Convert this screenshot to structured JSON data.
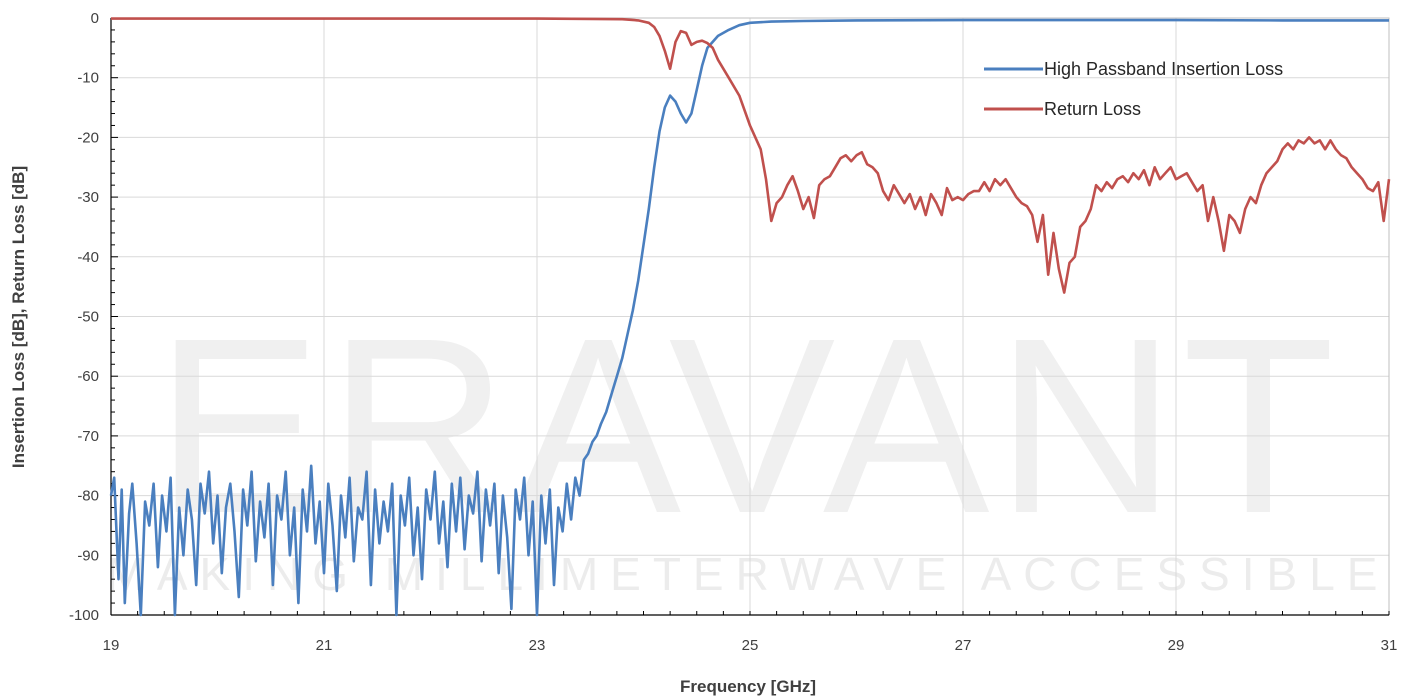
{
  "watermark": {
    "brand": "ERAVANT",
    "tagline": "MAKING MILLIMETERWAVE ACCESSIBLE"
  },
  "chart_data": {
    "type": "line",
    "title": "",
    "xlabel": "Frequency [GHz]",
    "ylabel": "Insertion Loss [dB], Return Loss [dB]",
    "xlim": [
      19,
      31
    ],
    "ylim": [
      -100,
      0
    ],
    "x_ticks": [
      19,
      21,
      23,
      25,
      27,
      29,
      31
    ],
    "y_ticks": [
      0,
      -10,
      -20,
      -30,
      -40,
      -50,
      -60,
      -70,
      -80,
      -90,
      -100
    ],
    "grid": true,
    "legend_position": "top-right",
    "series": [
      {
        "name": "High Passband Insertion Loss",
        "color": "#4a7fbf",
        "points": [
          [
            19.0,
            -80
          ],
          [
            19.03,
            -77
          ],
          [
            19.07,
            -94
          ],
          [
            19.1,
            -79
          ],
          [
            19.13,
            -98
          ],
          [
            19.17,
            -83
          ],
          [
            19.2,
            -78
          ],
          [
            19.24,
            -88
          ],
          [
            19.28,
            -100
          ],
          [
            19.32,
            -81
          ],
          [
            19.36,
            -85
          ],
          [
            19.4,
            -78
          ],
          [
            19.44,
            -92
          ],
          [
            19.48,
            -80
          ],
          [
            19.52,
            -86
          ],
          [
            19.56,
            -77
          ],
          [
            19.6,
            -100
          ],
          [
            19.64,
            -82
          ],
          [
            19.68,
            -90
          ],
          [
            19.72,
            -79
          ],
          [
            19.76,
            -84
          ],
          [
            19.8,
            -95
          ],
          [
            19.84,
            -78
          ],
          [
            19.88,
            -83
          ],
          [
            19.92,
            -76
          ],
          [
            19.96,
            -88
          ],
          [
            20.0,
            -80
          ],
          [
            20.04,
            -93
          ],
          [
            20.08,
            -82
          ],
          [
            20.12,
            -78
          ],
          [
            20.16,
            -86
          ],
          [
            20.2,
            -97
          ],
          [
            20.24,
            -79
          ],
          [
            20.28,
            -85
          ],
          [
            20.32,
            -76
          ],
          [
            20.36,
            -91
          ],
          [
            20.4,
            -81
          ],
          [
            20.44,
            -87
          ],
          [
            20.48,
            -78
          ],
          [
            20.52,
            -95
          ],
          [
            20.56,
            -80
          ],
          [
            20.6,
            -84
          ],
          [
            20.64,
            -76
          ],
          [
            20.68,
            -90
          ],
          [
            20.72,
            -82
          ],
          [
            20.76,
            -98
          ],
          [
            20.8,
            -79
          ],
          [
            20.84,
            -86
          ],
          [
            20.88,
            -75
          ],
          [
            20.92,
            -88
          ],
          [
            20.96,
            -81
          ],
          [
            21.0,
            -93
          ],
          [
            21.04,
            -78
          ],
          [
            21.08,
            -85
          ],
          [
            21.12,
            -96
          ],
          [
            21.16,
            -80
          ],
          [
            21.2,
            -87
          ],
          [
            21.24,
            -77
          ],
          [
            21.28,
            -91
          ],
          [
            21.32,
            -82
          ],
          [
            21.36,
            -84
          ],
          [
            21.4,
            -76
          ],
          [
            21.44,
            -95
          ],
          [
            21.48,
            -79
          ],
          [
            21.52,
            -88
          ],
          [
            21.56,
            -81
          ],
          [
            21.6,
            -86
          ],
          [
            21.64,
            -78
          ],
          [
            21.68,
            -100
          ],
          [
            21.72,
            -80
          ],
          [
            21.76,
            -85
          ],
          [
            21.8,
            -77
          ],
          [
            21.84,
            -90
          ],
          [
            21.88,
            -82
          ],
          [
            21.92,
            -94
          ],
          [
            21.96,
            -79
          ],
          [
            22.0,
            -84
          ],
          [
            22.04,
            -76
          ],
          [
            22.08,
            -88
          ],
          [
            22.12,
            -81
          ],
          [
            22.16,
            -92
          ],
          [
            22.2,
            -78
          ],
          [
            22.24,
            -86
          ],
          [
            22.28,
            -77
          ],
          [
            22.32,
            -89
          ],
          [
            22.36,
            -80
          ],
          [
            22.4,
            -83
          ],
          [
            22.44,
            -76
          ],
          [
            22.48,
            -91
          ],
          [
            22.52,
            -79
          ],
          [
            22.56,
            -85
          ],
          [
            22.6,
            -78
          ],
          [
            22.64,
            -93
          ],
          [
            22.68,
            -80
          ],
          [
            22.72,
            -87
          ],
          [
            22.76,
            -99
          ],
          [
            22.8,
            -79
          ],
          [
            22.84,
            -84
          ],
          [
            22.88,
            -77
          ],
          [
            22.92,
            -90
          ],
          [
            22.96,
            -81
          ],
          [
            23.0,
            -100
          ],
          [
            23.04,
            -80
          ],
          [
            23.08,
            -88
          ],
          [
            23.12,
            -79
          ],
          [
            23.16,
            -95
          ],
          [
            23.2,
            -82
          ],
          [
            23.24,
            -86
          ],
          [
            23.28,
            -78
          ],
          [
            23.32,
            -84
          ],
          [
            23.36,
            -77
          ],
          [
            23.4,
            -80
          ],
          [
            23.44,
            -74
          ],
          [
            23.48,
            -73
          ],
          [
            23.52,
            -71
          ],
          [
            23.56,
            -70
          ],
          [
            23.6,
            -68
          ],
          [
            23.65,
            -66
          ],
          [
            23.7,
            -63
          ],
          [
            23.75,
            -60
          ],
          [
            23.8,
            -57
          ],
          [
            23.85,
            -53
          ],
          [
            23.9,
            -49
          ],
          [
            23.95,
            -44
          ],
          [
            24.0,
            -38
          ],
          [
            24.05,
            -32
          ],
          [
            24.1,
            -25
          ],
          [
            24.15,
            -19
          ],
          [
            24.2,
            -15
          ],
          [
            24.25,
            -13
          ],
          [
            24.3,
            -14
          ],
          [
            24.35,
            -16
          ],
          [
            24.4,
            -17.5
          ],
          [
            24.45,
            -16
          ],
          [
            24.5,
            -12
          ],
          [
            24.55,
            -8
          ],
          [
            24.6,
            -5
          ],
          [
            24.7,
            -3
          ],
          [
            24.8,
            -2
          ],
          [
            24.9,
            -1.2
          ],
          [
            25.0,
            -0.8
          ],
          [
            25.2,
            -0.6
          ],
          [
            25.5,
            -0.5
          ],
          [
            26.0,
            -0.4
          ],
          [
            27.0,
            -0.35
          ],
          [
            28.0,
            -0.35
          ],
          [
            29.0,
            -0.35
          ],
          [
            30.0,
            -0.4
          ],
          [
            31.0,
            -0.4
          ]
        ]
      },
      {
        "name": "Return Loss",
        "color": "#c0504d",
        "points": [
          [
            19.0,
            -0.1
          ],
          [
            20.0,
            -0.1
          ],
          [
            21.0,
            -0.1
          ],
          [
            22.0,
            -0.1
          ],
          [
            23.0,
            -0.1
          ],
          [
            23.5,
            -0.15
          ],
          [
            23.8,
            -0.2
          ],
          [
            23.95,
            -0.4
          ],
          [
            24.05,
            -0.8
          ],
          [
            24.1,
            -1.5
          ],
          [
            24.15,
            -3
          ],
          [
            24.2,
            -5.5
          ],
          [
            24.25,
            -8.5
          ],
          [
            24.3,
            -4
          ],
          [
            24.35,
            -2.2
          ],
          [
            24.4,
            -2.5
          ],
          [
            24.45,
            -4.5
          ],
          [
            24.5,
            -4
          ],
          [
            24.55,
            -3.8
          ],
          [
            24.6,
            -4.2
          ],
          [
            24.65,
            -5
          ],
          [
            24.7,
            -7
          ],
          [
            24.8,
            -10
          ],
          [
            24.9,
            -13
          ],
          [
            25.0,
            -18
          ],
          [
            25.1,
            -22
          ],
          [
            25.15,
            -27
          ],
          [
            25.2,
            -34
          ],
          [
            25.25,
            -31
          ],
          [
            25.3,
            -30
          ],
          [
            25.35,
            -28
          ],
          [
            25.4,
            -26.5
          ],
          [
            25.45,
            -29
          ],
          [
            25.5,
            -32
          ],
          [
            25.55,
            -30
          ],
          [
            25.6,
            -33.5
          ],
          [
            25.65,
            -28
          ],
          [
            25.7,
            -27
          ],
          [
            25.75,
            -26.5
          ],
          [
            25.8,
            -25
          ],
          [
            25.85,
            -23.5
          ],
          [
            25.9,
            -23
          ],
          [
            25.95,
            -24
          ],
          [
            26.0,
            -23
          ],
          [
            26.05,
            -22.5
          ],
          [
            26.1,
            -24.5
          ],
          [
            26.15,
            -25
          ],
          [
            26.2,
            -26
          ],
          [
            26.25,
            -29
          ],
          [
            26.3,
            -30.5
          ],
          [
            26.35,
            -28
          ],
          [
            26.4,
            -29.5
          ],
          [
            26.45,
            -31
          ],
          [
            26.5,
            -29.5
          ],
          [
            26.55,
            -32
          ],
          [
            26.6,
            -30
          ],
          [
            26.65,
            -33
          ],
          [
            26.7,
            -29.5
          ],
          [
            26.75,
            -31
          ],
          [
            26.8,
            -33
          ],
          [
            26.85,
            -28.5
          ],
          [
            26.9,
            -30.5
          ],
          [
            26.95,
            -30
          ],
          [
            27.0,
            -30.5
          ],
          [
            27.05,
            -29.5
          ],
          [
            27.1,
            -29
          ],
          [
            27.15,
            -29
          ],
          [
            27.2,
            -27.5
          ],
          [
            27.25,
            -29
          ],
          [
            27.3,
            -27
          ],
          [
            27.35,
            -28
          ],
          [
            27.4,
            -27
          ],
          [
            27.45,
            -28.5
          ],
          [
            27.5,
            -30
          ],
          [
            27.55,
            -31
          ],
          [
            27.6,
            -31.5
          ],
          [
            27.65,
            -33
          ],
          [
            27.7,
            -37.5
          ],
          [
            27.75,
            -33
          ],
          [
            27.8,
            -43
          ],
          [
            27.85,
            -36
          ],
          [
            27.9,
            -42
          ],
          [
            27.95,
            -46
          ],
          [
            28.0,
            -41
          ],
          [
            28.05,
            -40
          ],
          [
            28.1,
            -35
          ],
          [
            28.15,
            -34
          ],
          [
            28.2,
            -32
          ],
          [
            28.25,
            -28
          ],
          [
            28.3,
            -29
          ],
          [
            28.35,
            -27.5
          ],
          [
            28.4,
            -28.5
          ],
          [
            28.45,
            -27
          ],
          [
            28.5,
            -26.5
          ],
          [
            28.55,
            -27.5
          ],
          [
            28.6,
            -26
          ],
          [
            28.65,
            -27
          ],
          [
            28.7,
            -25.5
          ],
          [
            28.75,
            -28
          ],
          [
            28.8,
            -25
          ],
          [
            28.85,
            -27
          ],
          [
            28.9,
            -26
          ],
          [
            28.95,
            -25
          ],
          [
            29.0,
            -27
          ],
          [
            29.05,
            -26.5
          ],
          [
            29.1,
            -26
          ],
          [
            29.15,
            -27.5
          ],
          [
            29.2,
            -29
          ],
          [
            29.25,
            -28
          ],
          [
            29.3,
            -34
          ],
          [
            29.35,
            -30
          ],
          [
            29.4,
            -34
          ],
          [
            29.45,
            -39
          ],
          [
            29.5,
            -33
          ],
          [
            29.55,
            -34
          ],
          [
            29.6,
            -36
          ],
          [
            29.65,
            -32
          ],
          [
            29.7,
            -30
          ],
          [
            29.75,
            -31
          ],
          [
            29.8,
            -28
          ],
          [
            29.85,
            -26
          ],
          [
            29.9,
            -25
          ],
          [
            29.95,
            -24
          ],
          [
            30.0,
            -22
          ],
          [
            30.05,
            -21
          ],
          [
            30.1,
            -22
          ],
          [
            30.15,
            -20.5
          ],
          [
            30.2,
            -21
          ],
          [
            30.25,
            -20
          ],
          [
            30.3,
            -21
          ],
          [
            30.35,
            -20.5
          ],
          [
            30.4,
            -22
          ],
          [
            30.45,
            -20.5
          ],
          [
            30.5,
            -22
          ],
          [
            30.55,
            -23
          ],
          [
            30.6,
            -23.5
          ],
          [
            30.65,
            -25
          ],
          [
            30.7,
            -26
          ],
          [
            30.75,
            -27
          ],
          [
            30.8,
            -28.5
          ],
          [
            30.85,
            -29
          ],
          [
            30.9,
            -27.5
          ],
          [
            30.95,
            -34
          ],
          [
            31.0,
            -27
          ]
        ]
      }
    ]
  }
}
